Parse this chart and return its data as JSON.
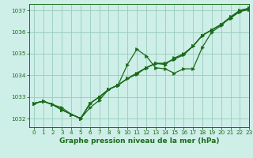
{
  "xlabel": "Graphe pression niveau de la mer (hPa)",
  "xlim": [
    -0.5,
    23
  ],
  "ylim": [
    1031.6,
    1037.3
  ],
  "yticks": [
    1032,
    1033,
    1034,
    1035,
    1036,
    1037
  ],
  "xticks": [
    0,
    1,
    2,
    3,
    4,
    5,
    6,
    7,
    8,
    9,
    10,
    11,
    12,
    13,
    14,
    15,
    16,
    17,
    18,
    19,
    20,
    21,
    22,
    23
  ],
  "bg_color": "#ceeee8",
  "grid_color": "#99ccbb",
  "line_color": "#1a6b1a",
  "series": [
    [
      1032.7,
      1032.8,
      1032.65,
      1032.5,
      1032.2,
      1032.0,
      1032.5,
      1032.85,
      1033.35,
      1033.55,
      1034.5,
      1035.2,
      1034.9,
      1034.35,
      1034.3,
      1034.1,
      1034.3,
      1034.3,
      1035.3,
      1036.0,
      1036.3,
      1036.7,
      1037.0,
      1037.1
    ],
    [
      1032.7,
      1032.8,
      1032.65,
      1032.4,
      1032.2,
      1032.0,
      1032.7,
      1033.0,
      1033.35,
      1033.55,
      1033.85,
      1034.05,
      1034.35,
      1034.55,
      1034.5,
      1034.8,
      1035.0,
      1035.35,
      1035.85,
      1036.1,
      1036.35,
      1036.7,
      1037.0,
      1037.1
    ],
    [
      1032.7,
      1032.8,
      1032.65,
      1032.4,
      1032.2,
      1032.0,
      1032.7,
      1033.0,
      1033.35,
      1033.55,
      1033.85,
      1034.1,
      1034.35,
      1034.55,
      1034.55,
      1034.75,
      1034.95,
      1035.35,
      1035.85,
      1036.1,
      1036.35,
      1036.65,
      1036.95,
      1037.05
    ],
    [
      1032.7,
      1032.8,
      1032.65,
      1032.4,
      1032.2,
      1032.0,
      1032.7,
      1033.0,
      1033.35,
      1033.55,
      1033.85,
      1034.1,
      1034.35,
      1034.55,
      1034.55,
      1034.75,
      1034.95,
      1035.35,
      1035.85,
      1036.1,
      1036.35,
      1036.65,
      1036.95,
      1037.05
    ]
  ],
  "marker": ">",
  "markersize": 2.8,
  "linewidth": 0.9,
  "tick_fontsize": 5.2,
  "xlabel_fontsize": 6.5
}
